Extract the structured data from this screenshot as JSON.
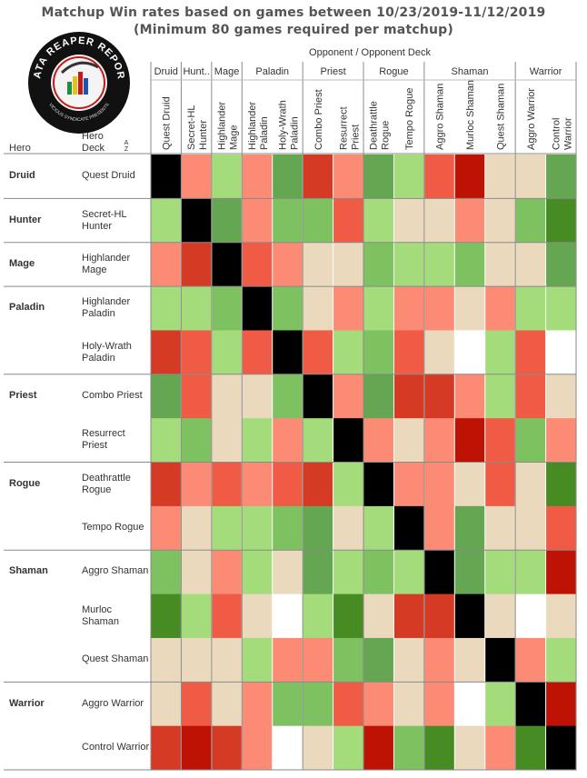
{
  "title_line1": "Matchup Win rates based on games between 10/23/2019-11/12/2019",
  "title_line2": "(Minimum 80 games required per matchup)",
  "logo": {
    "text_top": "DATA REAPER REPORT",
    "text_bottom": "VICIOUS SYNDICATE PRESENTS"
  },
  "header": {
    "opponent_label": "Opponent  /  Opponent Deck",
    "hero_label": "Hero",
    "deck_label": "Hero Deck",
    "sort_glyph": "A Z"
  },
  "colors": {
    "black": "#000000",
    "white": "#ffffff",
    "beige": "#ead9bd",
    "salmon": "#fb8b74",
    "coral": "#f05b46",
    "red": "#d43a24",
    "darkred": "#be1205",
    "lightgreen": "#a5dc7b",
    "green": "#7ec161",
    "mediumgreen": "#64a652",
    "darkgreen": "#468c23"
  },
  "chart_data": {
    "type": "heatmap",
    "title": "Matchup Win rates based on games between 10/23/2019-11/12/2019",
    "subtitle": "(Minimum 80 games required per matchup)",
    "xlabel": "Opponent  /  Opponent Deck",
    "ylabel": "Hero",
    "opponent_groups": [
      {
        "hero": "Druid",
        "span": 1
      },
      {
        "hero": "Hunt..",
        "span": 1
      },
      {
        "hero": "Mage",
        "span": 1
      },
      {
        "hero": "Paladin",
        "span": 2
      },
      {
        "hero": "Priest",
        "span": 2
      },
      {
        "hero": "Rogue",
        "span": 2
      },
      {
        "hero": "Shaman",
        "span": 3
      },
      {
        "hero": "Warrior",
        "span": 2
      }
    ],
    "columns": [
      "Quest Druid",
      "Secret-HL Hunter",
      "Highlander Mage",
      "Highlander Paladin",
      "Holy-Wrath Paladin",
      "Combo Priest",
      "Resurrect Priest",
      "Deathrattle Rogue",
      "Tempo Rogue",
      "Aggro Shaman",
      "Murloc Shaman",
      "Quest Shaman",
      "Aggro Warrior",
      "Control Warrior"
    ],
    "row_groups": [
      {
        "hero": "Druid",
        "span": 1
      },
      {
        "hero": "Hunter",
        "span": 1
      },
      {
        "hero": "Mage",
        "span": 1
      },
      {
        "hero": "Paladin",
        "span": 2
      },
      {
        "hero": "Priest",
        "span": 2
      },
      {
        "hero": "Rogue",
        "span": 2
      },
      {
        "hero": "Shaman",
        "span": 3
      },
      {
        "hero": "Warrior",
        "span": 2
      }
    ],
    "rows": [
      "Quest Druid",
      "Secret-HL Hunter",
      "Highlander Mage",
      "Highlander Paladin",
      "Holy-Wrath Paladin",
      "Combo Priest",
      "Resurrect Priest",
      "Deathrattle Rogue",
      "Tempo Rogue",
      "Aggro Shaman",
      "Murloc Shaman",
      "Quest Shaman",
      "Aggro Warrior",
      "Control Warrior"
    ],
    "cells": [
      [
        "black",
        "salmon",
        "lightgreen",
        "salmon",
        "mediumgreen",
        "red",
        "salmon",
        "mediumgreen",
        "lightgreen",
        "coral",
        "darkred",
        "beige",
        "beige",
        "mediumgreen"
      ],
      [
        "lightgreen",
        "black",
        "mediumgreen",
        "salmon",
        "green",
        "green",
        "coral",
        "lightgreen",
        "beige",
        "beige",
        "salmon",
        "beige",
        "green",
        "darkgreen"
      ],
      [
        "salmon",
        "red",
        "black",
        "coral",
        "salmon",
        "beige",
        "beige",
        "green",
        "lightgreen",
        "lightgreen",
        "green",
        "beige",
        "beige",
        "mediumgreen"
      ],
      [
        "lightgreen",
        "lightgreen",
        "green",
        "black",
        "green",
        "beige",
        "salmon",
        "lightgreen",
        "salmon",
        "salmon",
        "beige",
        "salmon",
        "lightgreen",
        "lightgreen"
      ],
      [
        "red",
        "coral",
        "lightgreen",
        "coral",
        "black",
        "coral",
        "lightgreen",
        "green",
        "coral",
        "beige",
        "white",
        "lightgreen",
        "coral",
        "white"
      ],
      [
        "mediumgreen",
        "coral",
        "beige",
        "beige",
        "green",
        "black",
        "salmon",
        "mediumgreen",
        "red",
        "red",
        "salmon",
        "lightgreen",
        "coral",
        "beige"
      ],
      [
        "lightgreen",
        "green",
        "beige",
        "lightgreen",
        "salmon",
        "lightgreen",
        "black",
        "salmon",
        "beige",
        "salmon",
        "darkred",
        "coral",
        "green",
        "salmon"
      ],
      [
        "red",
        "salmon",
        "coral",
        "salmon",
        "coral",
        "red",
        "lightgreen",
        "black",
        "salmon",
        "salmon",
        "beige",
        "coral",
        "beige",
        "darkgreen"
      ],
      [
        "salmon",
        "beige",
        "lightgreen",
        "lightgreen",
        "green",
        "mediumgreen",
        "beige",
        "lightgreen",
        "black",
        "salmon",
        "mediumgreen",
        "beige",
        "beige",
        "coral"
      ],
      [
        "green",
        "beige",
        "salmon",
        "lightgreen",
        "beige",
        "mediumgreen",
        "lightgreen",
        "green",
        "lightgreen",
        "black",
        "mediumgreen",
        "lightgreen",
        "lightgreen",
        "darkred"
      ],
      [
        "darkgreen",
        "lightgreen",
        "coral",
        "beige",
        "white",
        "lightgreen",
        "darkgreen",
        "beige",
        "red",
        "red",
        "black",
        "beige",
        "white",
        "beige"
      ],
      [
        "beige",
        "beige",
        "beige",
        "lightgreen",
        "salmon",
        "salmon",
        "green",
        "mediumgreen",
        "beige",
        "salmon",
        "beige",
        "black",
        "salmon",
        "lightgreen"
      ],
      [
        "beige",
        "coral",
        "beige",
        "salmon",
        "green",
        "green",
        "coral",
        "salmon",
        "beige",
        "salmon",
        "white",
        "lightgreen",
        "black",
        "darkred"
      ],
      [
        "red",
        "darkred",
        "red",
        "salmon",
        "white",
        "beige",
        "lightgreen",
        "darkred",
        "green",
        "darkgreen",
        "beige",
        "salmon",
        "darkgreen",
        "black"
      ]
    ]
  }
}
